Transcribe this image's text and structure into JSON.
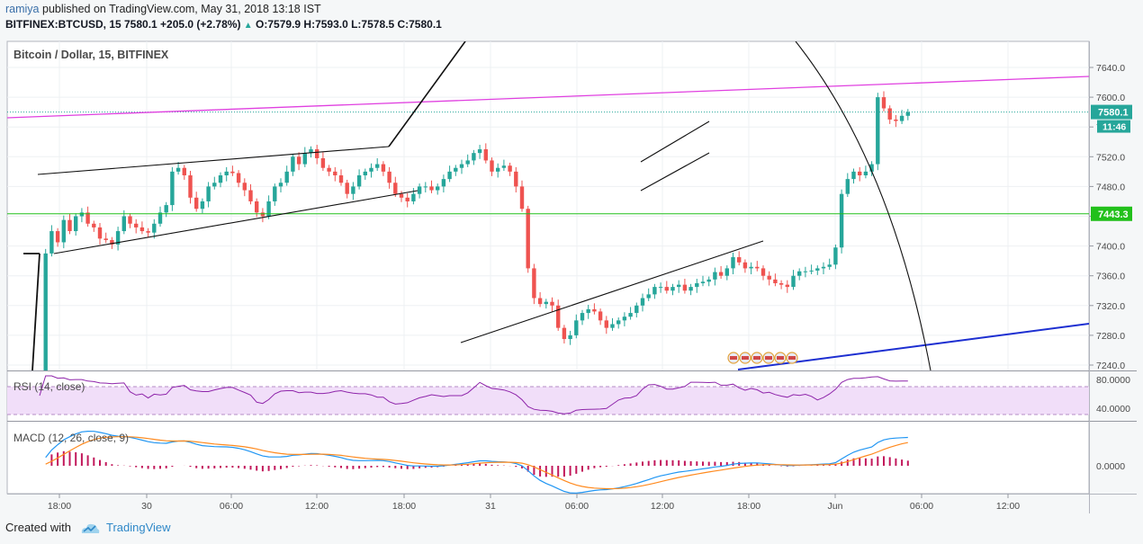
{
  "header": {
    "user": "ramiya",
    "published": " published on TradingView.com, May 31, 2018 13:18 IST",
    "symbol_line_prefix": "BITFINEX:BTCUSD, 15 7580.1 +205.0 (+2.78%)",
    "arrow": "▲",
    "symbol_line_suffix": " O:7579.9 H:7593.0 L:7578.5 C:7580.1"
  },
  "footer": {
    "created_with": "Created with",
    "brand": "TradingView"
  },
  "colors": {
    "up": "#26a69a",
    "down": "#ef5350",
    "magenta_line": "#e040e0",
    "blue_line": "#1d2fd1",
    "green_line": "#22c01b",
    "rsi_band": "#f1def9",
    "rsi_line": "#8e24aa",
    "macd_line": "#2196f3",
    "signal_line": "#ff8a1f",
    "hist": "#c2185b"
  },
  "chart_data": [
    {
      "type": "candlestick",
      "title": "Bitcoin / Dollar, 15, BITFINEX",
      "yticks": [
        7640,
        7600,
        7560,
        7520,
        7480,
        7440,
        7400,
        7360,
        7320,
        7280,
        7240
      ],
      "ytick_labels": [
        "7640.0",
        "7600.0",
        "7560.0",
        "7520.0",
        "7480.0",
        "7440.0",
        "7400.0",
        "7360.0",
        "7320.0",
        "7280.0",
        "7240.0"
      ],
      "ylim": [
        7232,
        7668
      ],
      "xticks": [
        "18:00",
        "30",
        "06:00",
        "12:00",
        "18:00",
        "31",
        "06:00",
        "12:00",
        "18:00",
        "Jun",
        "06:00",
        "12:00"
      ],
      "price_tags": [
        {
          "label": "7580.1",
          "value": 7580.1,
          "sub": "11:46",
          "color": "#26a69a"
        },
        {
          "label": "7443.3",
          "value": 7443.3,
          "color": "#22c01b"
        }
      ],
      "closes": [
        7180,
        7390,
        7420,
        7405,
        7435,
        7420,
        7440,
        7445,
        7430,
        7425,
        7410,
        7408,
        7402,
        7420,
        7440,
        7430,
        7425,
        7420,
        7418,
        7430,
        7445,
        7455,
        7500,
        7505,
        7495,
        7465,
        7450,
        7460,
        7480,
        7485,
        7495,
        7500,
        7498,
        7485,
        7475,
        7460,
        7445,
        7440,
        7460,
        7480,
        7485,
        7500,
        7520,
        7510,
        7525,
        7530,
        7518,
        7505,
        7500,
        7495,
        7485,
        7470,
        7480,
        7495,
        7500,
        7505,
        7510,
        7500,
        7485,
        7470,
        7465,
        7460,
        7470,
        7480,
        7480,
        7475,
        7480,
        7490,
        7500,
        7505,
        7510,
        7515,
        7525,
        7530,
        7515,
        7500,
        7505,
        7508,
        7500,
        7480,
        7450,
        7370,
        7330,
        7322,
        7325,
        7320,
        7290,
        7275,
        7280,
        7300,
        7310,
        7315,
        7312,
        7300,
        7290,
        7295,
        7300,
        7305,
        7310,
        7320,
        7330,
        7335,
        7345,
        7345,
        7340,
        7345,
        7348,
        7340,
        7345,
        7350,
        7352,
        7355,
        7365,
        7360,
        7370,
        7385,
        7378,
        7370,
        7372,
        7370,
        7360,
        7355,
        7350,
        7348,
        7345,
        7360,
        7366,
        7366,
        7367,
        7370,
        7372,
        7375,
        7398,
        7470,
        7490,
        7500,
        7495,
        7500,
        7510,
        7600,
        7585,
        7570,
        7568,
        7575,
        7580.1
      ],
      "hlines": [
        7443.3
      ],
      "trendlines": 8
    },
    {
      "type": "line",
      "title": "RSI (14, close)",
      "yticks": [
        80,
        40
      ],
      "ytick_labels": [
        "80.0000",
        "40.0000"
      ]
    },
    {
      "type": "line",
      "title": "MACD (12, 26, close, 9)",
      "yticks": [
        0
      ],
      "ytick_labels": [
        "0.0000"
      ]
    }
  ]
}
